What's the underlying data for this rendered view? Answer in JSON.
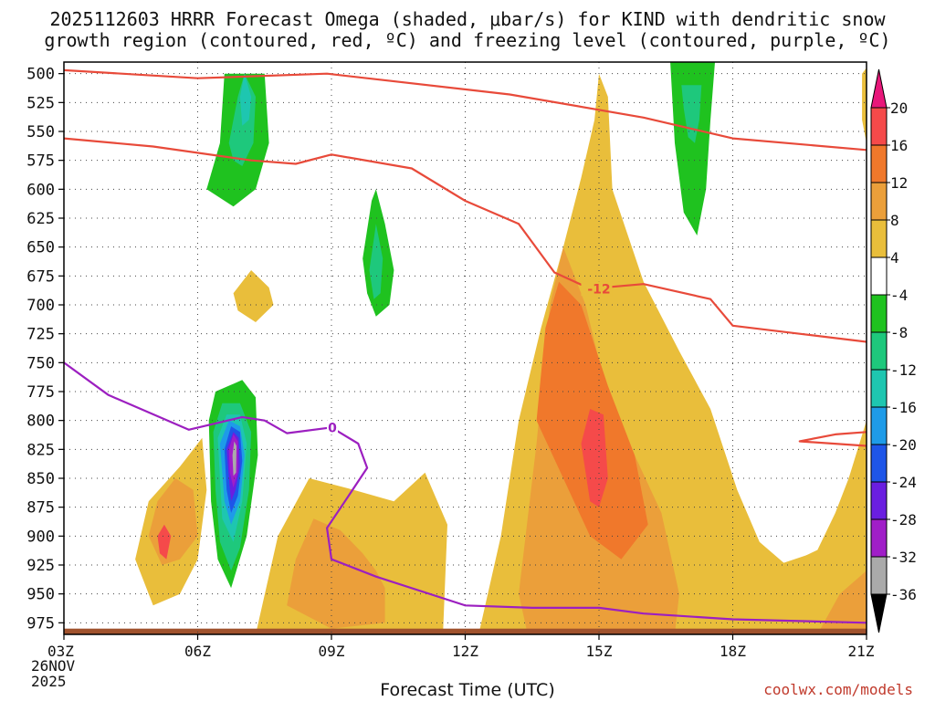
{
  "title_line1": "2025112603 HRRR Forecast Omega (shaded, μbar/s) for KIND with dendritic snow",
  "title_line2": "growth region (contoured, red, ºC) and freezing level (contoured, purple, ºC)",
  "x_axis_label": "Forecast Time (UTC)",
  "date_line1": "26NOV",
  "date_line2": "2025",
  "credit": "coolwx.com/models",
  "chart_data": {
    "type": "heatmap",
    "title": "2025112603 HRRR Forecast Omega (shaded, μbar/s) for KIND with dendritic snow growth region (contoured, red, ºC) and freezing level (contoured, purple, ºC)",
    "xlabel": "Forecast Time (UTC)",
    "ylabel": "Pressure (hPa)",
    "x_ticks": [
      "03Z",
      "06Z",
      "09Z",
      "12Z",
      "15Z",
      "18Z",
      "21Z"
    ],
    "x_range_hours": [
      3,
      21
    ],
    "y_ticks": [
      500,
      525,
      550,
      575,
      600,
      625,
      650,
      675,
      700,
      725,
      750,
      775,
      800,
      825,
      850,
      875,
      900,
      925,
      950,
      975
    ],
    "y_range": [
      490,
      985
    ],
    "colorbar": {
      "tick_labels": [
        "20",
        "16",
        "12",
        "8",
        "4",
        "-4",
        "-8",
        "-12",
        "-16",
        "-20",
        "-24",
        "-28",
        "-32",
        "-36"
      ],
      "bins": [
        {
          "lo": 20,
          "hi": null,
          "color": "#e8177a"
        },
        {
          "lo": 16,
          "hi": 20,
          "color": "#f54a4a"
        },
        {
          "lo": 12,
          "hi": 16,
          "color": "#f0782b"
        },
        {
          "lo": 8,
          "hi": 12,
          "color": "#eb9f3a"
        },
        {
          "lo": 4,
          "hi": 8,
          "color": "#e9be3b"
        },
        {
          "lo": -4,
          "hi": 4,
          "color": "#ffffff"
        },
        {
          "lo": -8,
          "hi": -4,
          "color": "#1fc21f"
        },
        {
          "lo": -12,
          "hi": -8,
          "color": "#1ec87c"
        },
        {
          "lo": -16,
          "hi": -12,
          "color": "#1ec6b0"
        },
        {
          "lo": -20,
          "hi": -16,
          "color": "#1e9be8"
        },
        {
          "lo": -24,
          "hi": -20,
          "color": "#1e55e8"
        },
        {
          "lo": -28,
          "hi": -24,
          "color": "#6a1ee0"
        },
        {
          "lo": -32,
          "hi": -28,
          "color": "#a01ec8"
        },
        {
          "lo": -36,
          "hi": -32,
          "color": "#aaaaaa"
        },
        {
          "lo": null,
          "hi": -36,
          "color": "#000000"
        }
      ]
    },
    "omega_features": [
      {
        "name": "ascent-column-07z",
        "min_value": -36,
        "t_range": [
          5.9,
          8.0
        ],
        "p_range": [
          490,
          955
        ]
      },
      {
        "name": "ascent-plume-10z",
        "min_value": -12,
        "t_range": [
          9.0,
          11.7
        ],
        "p_range": [
          490,
          760
        ]
      },
      {
        "name": "ascent-upper-14z",
        "min_value": -8,
        "t_range": [
          13.5,
          14.8
        ],
        "p_range": [
          490,
          555
        ]
      },
      {
        "name": "ascent-upper-17z",
        "min_value": -12,
        "t_range": [
          16.2,
          18.0
        ],
        "p_range": [
          490,
          690
        ]
      },
      {
        "name": "ascent-blob-12z",
        "min_value": -4,
        "t_range": [
          11.8,
          12.4
        ],
        "p_range": [
          840,
          930
        ]
      },
      {
        "name": "ascent-blob-04z",
        "min_value": -4,
        "t_range": [
          3.5,
          4.3
        ],
        "p_range": [
          870,
          960
        ]
      },
      {
        "name": "ascent-blob-20z",
        "min_value": -4,
        "t_range": [
          19.3,
          20.0
        ],
        "p_range": [
          710,
          780
        ]
      },
      {
        "name": "descent-main-15z",
        "max_value": 20,
        "t_range": [
          12.3,
          21
        ],
        "p_range": [
          500,
          985
        ]
      },
      {
        "name": "descent-lowlevel-09z",
        "max_value": 12,
        "t_range": [
          7.3,
          11.6
        ],
        "p_range": [
          845,
          985
        ]
      },
      {
        "name": "descent-05z",
        "max_value": 16,
        "t_range": [
          4.6,
          6.2
        ],
        "p_range": [
          800,
          960
        ]
      },
      {
        "name": "descent-small-07z",
        "max_value": 8,
        "t_range": [
          6.8,
          7.7
        ],
        "p_range": [
          670,
          725
        ]
      },
      {
        "name": "descent-22z-lowlevel",
        "max_value": 8,
        "t_range": [
          17.5,
          21
        ],
        "p_range": [
          820,
          985
        ]
      }
    ],
    "contours": [
      {
        "name": "dgz-upper",
        "color": "#e84a3a",
        "level_c": -18,
        "points": [
          [
            3,
            497
          ],
          [
            6,
            504
          ],
          [
            8.9,
            500
          ],
          [
            13,
            518
          ],
          [
            16,
            538
          ],
          [
            18,
            556
          ],
          [
            21,
            566
          ]
        ]
      },
      {
        "name": "dgz-lower",
        "color": "#e84a3a",
        "level_c": -12,
        "label": "-12",
        "points": [
          [
            3,
            556
          ],
          [
            5,
            563
          ],
          [
            7.2,
            575
          ],
          [
            8.2,
            578
          ],
          [
            9,
            570
          ],
          [
            10.8,
            582
          ],
          [
            12,
            610
          ],
          [
            13.2,
            630
          ],
          [
            14,
            672
          ],
          [
            14.8,
            686
          ],
          [
            16,
            682
          ],
          [
            17.5,
            695
          ],
          [
            18,
            718
          ],
          [
            19.5,
            725
          ],
          [
            21,
            732
          ]
        ]
      },
      {
        "name": "dgz-lowlevel-sliver",
        "color": "#e84a3a",
        "level_c": -12,
        "points": [
          [
            21,
            810
          ],
          [
            20.3,
            812
          ],
          [
            19.5,
            818
          ],
          [
            21,
            822
          ]
        ]
      },
      {
        "name": "freezing-level",
        "color": "#9c1fc0",
        "level_c": 0,
        "label": "0",
        "points": [
          [
            3,
            750
          ],
          [
            4,
            778
          ],
          [
            5.8,
            808
          ],
          [
            7,
            797
          ],
          [
            7.5,
            800
          ],
          [
            8,
            811
          ],
          [
            9,
            806
          ],
          [
            9.6,
            820
          ],
          [
            9.8,
            841
          ],
          [
            9.3,
            870
          ],
          [
            8.9,
            893
          ],
          [
            9,
            920
          ],
          [
            10,
            935
          ],
          [
            12,
            960
          ],
          [
            13.5,
            962
          ],
          [
            15,
            962
          ],
          [
            16,
            967
          ],
          [
            18,
            972
          ],
          [
            21,
            975
          ]
        ]
      }
    ],
    "terrain_band": {
      "color": "#a0522d",
      "p_range": [
        980,
        990
      ]
    }
  }
}
